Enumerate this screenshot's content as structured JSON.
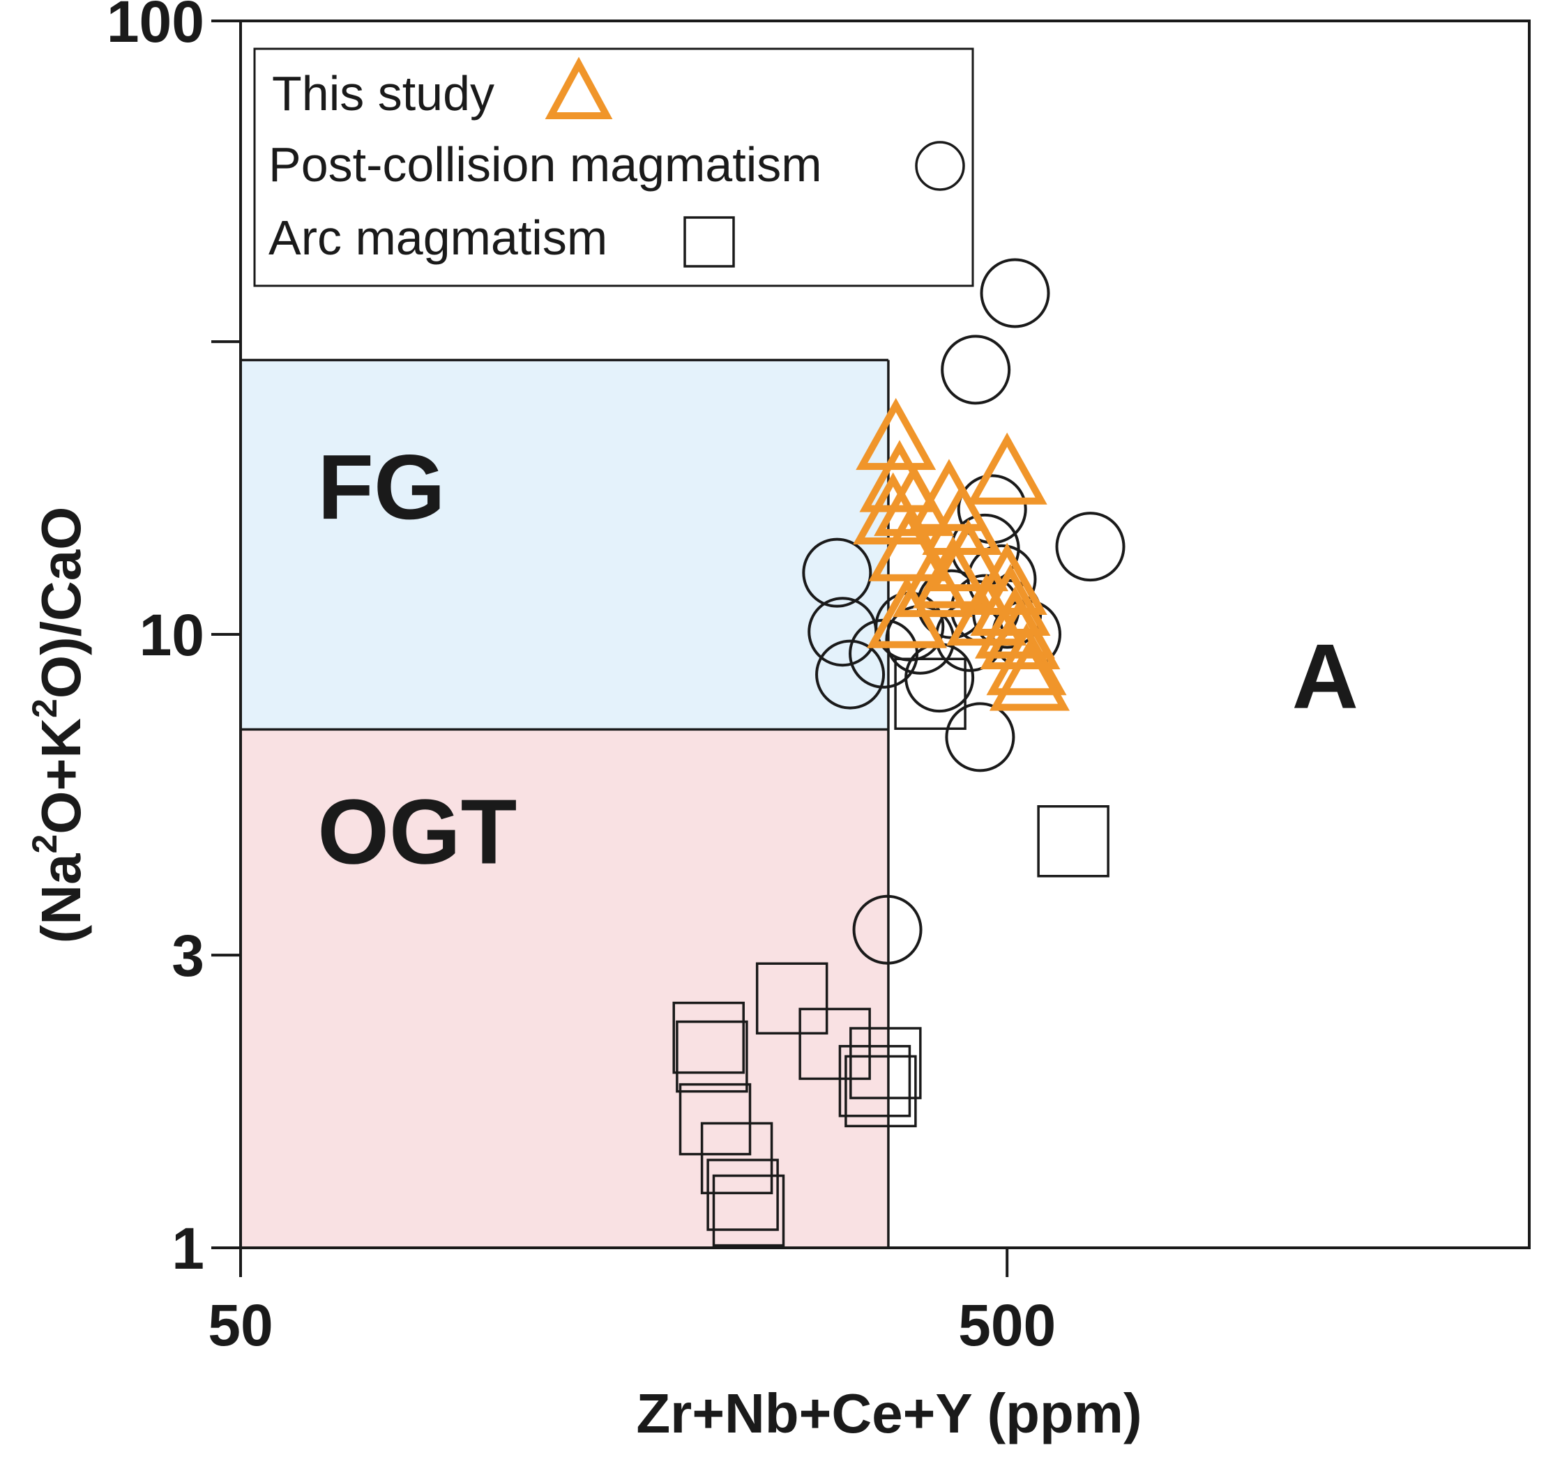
{
  "chart_data": {
    "type": "scatter",
    "title": "",
    "xlabel": "Zr+Nb+Ce+Y (ppm)",
    "ylabel_parts": [
      "(Na",
      "2",
      "O+K",
      "2",
      "O)/CaO"
    ],
    "x_scale": "log",
    "y_scale": "log",
    "xlim": [
      50,
      2400
    ],
    "ylim": [
      1,
      100
    ],
    "x_ticks": [
      {
        "value": 50,
        "label": "50"
      },
      {
        "value": 500,
        "label": "500"
      }
    ],
    "y_ticks": [
      {
        "value": 1,
        "label": "1"
      },
      {
        "value": 3,
        "label": "3"
      },
      {
        "value": 10,
        "label": "10"
      },
      {
        "value": 100,
        "label": "100"
      }
    ],
    "y_minor_ticks": [
      30
    ],
    "x_minor_ticks": [],
    "fields": [
      {
        "name": "FG",
        "x_range": [
          50,
          350
        ],
        "y_range": [
          7,
          28
        ],
        "color": "#e4f2fb"
      },
      {
        "name": "OGT",
        "x_range": [
          50,
          350
        ],
        "y_range": [
          1,
          7
        ],
        "color": "#f9e1e3"
      },
      {
        "name": "A",
        "x_range": [
          350,
          2400
        ],
        "y_range": [
          1,
          100
        ],
        "color": "#ffffff"
      }
    ],
    "field_boundary": {
      "x": 350,
      "y_ymax": 28,
      "y_split": 7
    },
    "legend": {
      "location": "top-left",
      "entries": [
        {
          "label": "This study",
          "marker": "triangle",
          "series": "this_study"
        },
        {
          "label": "Post-collision magmatism",
          "marker": "circle",
          "series": "post_collision"
        },
        {
          "label": "Arc magmatism",
          "marker": "square",
          "series": "arc"
        }
      ]
    },
    "series": [
      {
        "name": "This study",
        "key": "this_study",
        "marker": "triangle",
        "color": "#f0952a",
        "points": [
          {
            "x": 358,
            "y": 20.5
          },
          {
            "x": 362,
            "y": 17.5
          },
          {
            "x": 355,
            "y": 15.5
          },
          {
            "x": 378,
            "y": 16.0
          },
          {
            "x": 372,
            "y": 13.5
          },
          {
            "x": 420,
            "y": 16.3
          },
          {
            "x": 437,
            "y": 14.9
          },
          {
            "x": 500,
            "y": 18.0
          },
          {
            "x": 445,
            "y": 13.0
          },
          {
            "x": 425,
            "y": 12.2
          },
          {
            "x": 400,
            "y": 11.8
          },
          {
            "x": 500,
            "y": 11.9
          },
          {
            "x": 505,
            "y": 11.0
          },
          {
            "x": 512,
            "y": 10.1
          },
          {
            "x": 520,
            "y": 9.7
          },
          {
            "x": 370,
            "y": 10.5
          },
          {
            "x": 470,
            "y": 10.6
          },
          {
            "x": 530,
            "y": 8.8
          },
          {
            "x": 535,
            "y": 8.3
          }
        ]
      },
      {
        "name": "Post-collision magmatism",
        "key": "post_collision",
        "marker": "circle",
        "color": "#1a1a1a",
        "points": [
          {
            "x": 512,
            "y": 36.0
          },
          {
            "x": 455,
            "y": 27.0
          },
          {
            "x": 478,
            "y": 16.0
          },
          {
            "x": 468,
            "y": 13.8
          },
          {
            "x": 642,
            "y": 13.9
          },
          {
            "x": 300,
            "y": 12.6
          },
          {
            "x": 492,
            "y": 12.3
          },
          {
            "x": 468,
            "y": 11.0
          },
          {
            "x": 423,
            "y": 11.2
          },
          {
            "x": 500,
            "y": 10.8
          },
          {
            "x": 530,
            "y": 10.0
          },
          {
            "x": 373,
            "y": 10.3
          },
          {
            "x": 305,
            "y": 10.1
          },
          {
            "x": 385,
            "y": 9.8
          },
          {
            "x": 447,
            "y": 9.9
          },
          {
            "x": 345,
            "y": 9.3
          },
          {
            "x": 312,
            "y": 8.6
          },
          {
            "x": 408,
            "y": 8.5
          },
          {
            "x": 461,
            "y": 6.8
          },
          {
            "x": 349,
            "y": 3.3
          }
        ]
      },
      {
        "name": "Arc magmatism",
        "key": "arc",
        "marker": "square",
        "color": "#1a1a1a",
        "points": [
          {
            "x": 397,
            "y": 8.0
          },
          {
            "x": 610,
            "y": 4.6
          },
          {
            "x": 262,
            "y": 2.55
          },
          {
            "x": 204,
            "y": 2.2
          },
          {
            "x": 206,
            "y": 2.05
          },
          {
            "x": 298,
            "y": 2.15
          },
          {
            "x": 347,
            "y": 2.0
          },
          {
            "x": 336,
            "y": 1.87
          },
          {
            "x": 342,
            "y": 1.8
          },
          {
            "x": 208,
            "y": 1.62
          },
          {
            "x": 222,
            "y": 1.4
          },
          {
            "x": 226,
            "y": 1.22
          },
          {
            "x": 230,
            "y": 1.15
          }
        ]
      }
    ]
  }
}
